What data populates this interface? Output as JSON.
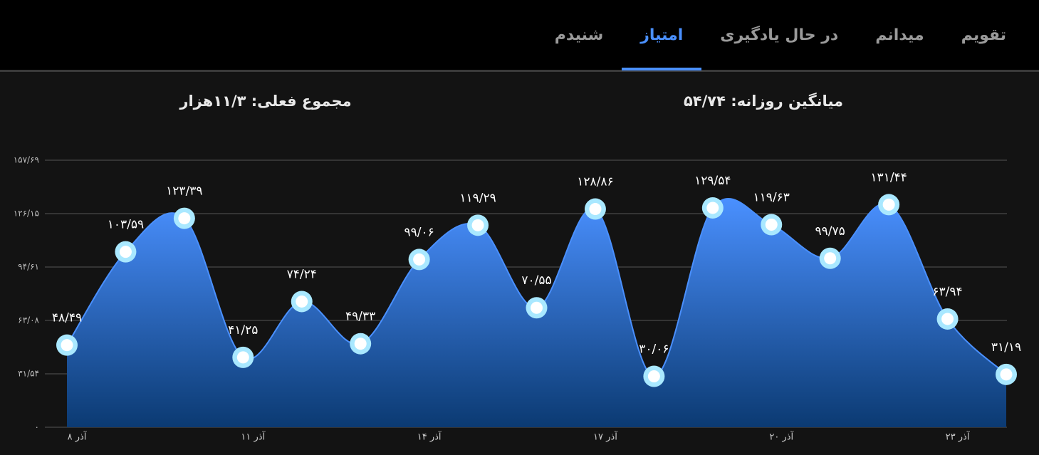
{
  "tabs": [
    {
      "label": "تقویم",
      "active": false
    },
    {
      "label": "میدانم",
      "active": false
    },
    {
      "label": "در حال یادگیری",
      "active": false
    },
    {
      "label": "امتیاز",
      "active": true
    },
    {
      "label": "شنیدم",
      "active": false
    }
  ],
  "stats": {
    "daily_average": "میانگین روزانه: ۵۴/۷۴",
    "current_total": "مجموع فعلی: ۱۱/۳هزار"
  },
  "chart_data": {
    "type": "area",
    "categories": [
      "۸ آذر",
      null,
      null,
      "۱۱ آذر",
      null,
      null,
      "۱۴ آذر",
      null,
      null,
      "۱۷ آذر",
      null,
      null,
      "۲۰ آذر",
      null,
      null,
      "۲۳ آذر",
      null
    ],
    "values": [
      48.49,
      103.59,
      123.39,
      41.25,
      74.24,
      49.33,
      99.06,
      119.29,
      70.55,
      128.86,
      30.06,
      129.54,
      119.63,
      99.75,
      131.44,
      63.94,
      31.19
    ],
    "value_labels": [
      "۴۸/۴۹",
      "۱۰۳/۵۹",
      "۱۲۳/۳۹",
      "۴۱/۲۵",
      "۷۴/۲۴",
      "۴۹/۳۳",
      "۹۹/۰۶",
      "۱۱۹/۲۹",
      "۷۰/۵۵",
      "۱۲۸/۸۶",
      "۳۰/۰۶",
      "۱۲۹/۵۴",
      "۱۱۹/۶۳",
      "۹۹/۷۵",
      "۱۳۱/۴۴",
      "۶۳/۹۴",
      "۳۱/۱۹"
    ],
    "color": "#4a90ff",
    "ylim": [
      0,
      157.69
    ],
    "yticks": [
      {
        "value": 0,
        "label": "۰"
      },
      {
        "value": 31.54,
        "label": "۳۱/۵۴"
      },
      {
        "value": 63.08,
        "label": "۶۳/۰۸"
      },
      {
        "value": 94.61,
        "label": "۹۴/۶۱"
      },
      {
        "value": 126.15,
        "label": "۱۲۶/۱۵"
      },
      {
        "value": 157.69,
        "label": "۱۵۷/۶۹"
      }
    ],
    "grid": true
  }
}
